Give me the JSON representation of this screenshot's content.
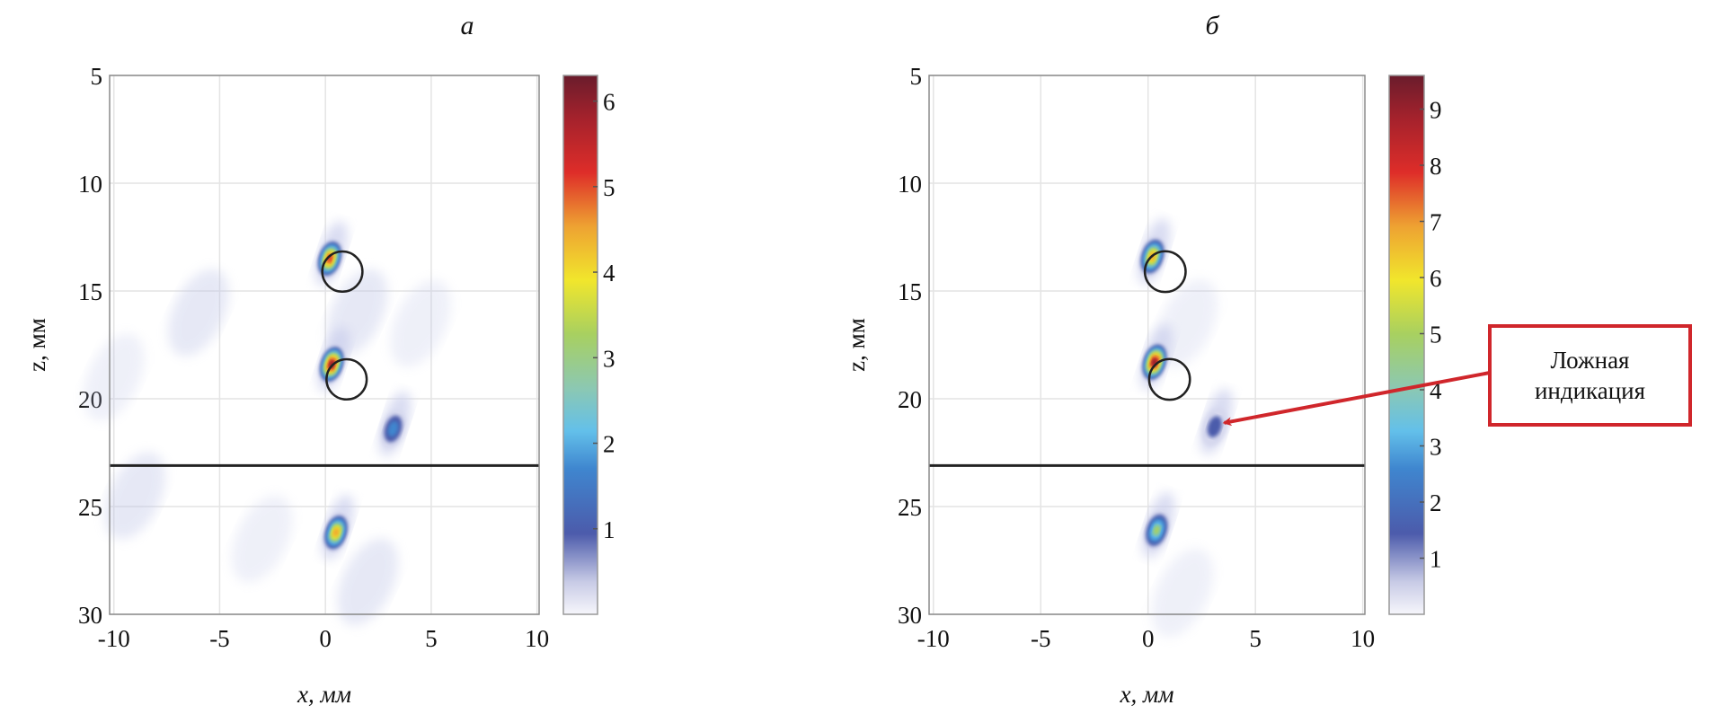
{
  "chart_data": [
    {
      "type": "heatmap",
      "title": "а",
      "xlabel": "x, мм",
      "ylabel": "z, мм",
      "xlim": [
        -10.2,
        10.1
      ],
      "ylim": [
        30,
        5
      ],
      "xticks": [
        -10,
        -5,
        0,
        5,
        10
      ],
      "yticks": [
        5,
        10,
        15,
        20,
        25,
        30
      ],
      "grid": true,
      "colorbar": {
        "range": [
          0,
          6.3
        ],
        "ticks": [
          1,
          2,
          3,
          4,
          5,
          6
        ]
      },
      "hotspots": [
        {
          "x": 0.2,
          "z": 13.5,
          "value": 5.5
        },
        {
          "x": 0.3,
          "z": 18.4,
          "value": 6.3
        },
        {
          "x": 3.2,
          "z": 21.4,
          "value": 1.3
        },
        {
          "x": 0.5,
          "z": 26.2,
          "value": 5.0
        }
      ],
      "weak_regions": [
        {
          "x": -6,
          "z": 16,
          "value": 0.3
        },
        {
          "x": -9,
          "z": 24.5,
          "value": 0.3
        },
        {
          "x": 1.5,
          "z": 16,
          "value": 0.3
        },
        {
          "x": 4.5,
          "z": 16.5,
          "value": 0.2
        },
        {
          "x": -3,
          "z": 26.5,
          "value": 0.2
        },
        {
          "x": 2,
          "z": 28.5,
          "value": 0.3
        },
        {
          "x": -10,
          "z": 19,
          "value": 0.2
        }
      ],
      "circles": [
        {
          "x": 0.8,
          "z": 14.1,
          "r": 0.95
        },
        {
          "x": 1.0,
          "z": 19.1,
          "r": 0.95
        }
      ],
      "hline_z": 23.1
    },
    {
      "type": "heatmap",
      "title": "б",
      "xlabel": "x, мм",
      "ylabel": "z, мм",
      "xlim": [
        -10.2,
        10.1
      ],
      "ylim": [
        30,
        5
      ],
      "xticks": [
        -10,
        -5,
        0,
        5,
        10
      ],
      "yticks": [
        5,
        10,
        15,
        20,
        25,
        30
      ],
      "grid": true,
      "colorbar": {
        "range": [
          0,
          9.6
        ],
        "ticks": [
          1,
          2,
          3,
          4,
          5,
          6,
          7,
          8,
          9
        ]
      },
      "hotspots": [
        {
          "x": 0.2,
          "z": 13.4,
          "value": 7.0
        },
        {
          "x": 0.3,
          "z": 18.3,
          "value": 9.6
        },
        {
          "x": 3.1,
          "z": 21.3,
          "value": 1.6
        },
        {
          "x": 0.4,
          "z": 26.1,
          "value": 5.0
        }
      ],
      "weak_regions": [
        {
          "x": 1.8,
          "z": 16.5,
          "value": 0.2
        },
        {
          "x": 1.6,
          "z": 29,
          "value": 0.2
        }
      ],
      "circles": [
        {
          "x": 0.8,
          "z": 14.1,
          "r": 0.95
        },
        {
          "x": 1.0,
          "z": 19.1,
          "r": 0.95
        }
      ],
      "hline_z": 23.1,
      "annotation": {
        "text_line1": "Ложная",
        "text_line2": "индикация",
        "target": {
          "x": 3.3,
          "z": 21.2
        }
      }
    }
  ],
  "colors": {
    "callout": "#d0262b",
    "grid": "#e4e4e4",
    "axis": "#8a8a8a"
  }
}
